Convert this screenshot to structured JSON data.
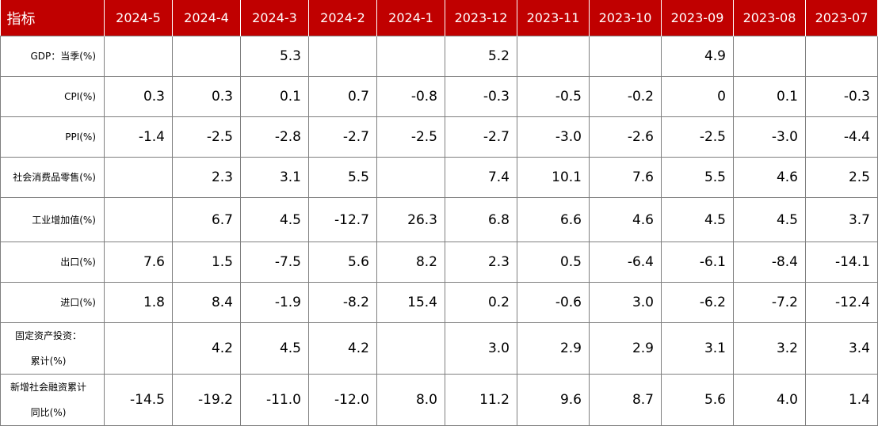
{
  "header": {
    "label": "指标",
    "periods": [
      "2024-5",
      "2024-4",
      "2024-3",
      "2024-2",
      "2024-1",
      "2023-12",
      "2023-11",
      "2023-10",
      "2023-09",
      "2023-08",
      "2023-07"
    ]
  },
  "rows": [
    {
      "label": "GDP：当季(%)",
      "values": [
        "",
        "",
        "5.3",
        "",
        "",
        "5.2",
        "",
        "",
        "4.9",
        "",
        ""
      ]
    },
    {
      "label": "CPI(%)",
      "values": [
        "0.3",
        "0.3",
        "0.1",
        "0.7",
        "-0.8",
        "-0.3",
        "-0.5",
        "-0.2",
        "0",
        "0.1",
        "-0.3"
      ]
    },
    {
      "label": "PPI(%)",
      "values": [
        "-1.4",
        "-2.5",
        "-2.8",
        "-2.7",
        "-2.5",
        "-2.7",
        "-3.0",
        "-2.6",
        "-2.5",
        "-3.0",
        "-4.4"
      ]
    },
    {
      "label": "社会消费品零售(%)",
      "values": [
        "",
        "2.3",
        "3.1",
        "5.5",
        "",
        "7.4",
        "10.1",
        "7.6",
        "5.5",
        "4.6",
        "2.5"
      ]
    },
    {
      "label": "工业增加值(%)",
      "values": [
        "",
        "6.7",
        "4.5",
        "-12.7",
        "26.3",
        "6.8",
        "6.6",
        "4.6",
        "4.5",
        "4.5",
        "3.7"
      ]
    },
    {
      "label": "出口(%)",
      "values": [
        "7.6",
        "1.5",
        "-7.5",
        "5.6",
        "8.2",
        "2.3",
        "0.5",
        "-6.4",
        "-6.1",
        "-8.4",
        "-14.1"
      ]
    },
    {
      "label": "进口(%)",
      "values": [
        "1.8",
        "8.4",
        "-1.9",
        "-8.2",
        "15.4",
        "0.2",
        "-0.6",
        "3.0",
        "-6.2",
        "-7.2",
        "-12.4"
      ]
    },
    {
      "label_lines": [
        "固定资产投资：",
        "累计(%)"
      ],
      "values": [
        "",
        "4.2",
        "4.5",
        "4.2",
        "",
        "3.0",
        "2.9",
        "2.9",
        "3.1",
        "3.2",
        "3.4"
      ]
    },
    {
      "label_lines": [
        "新增社会融资累计",
        "同比(%)"
      ],
      "values": [
        "-14.5",
        "-19.2",
        "-11.0",
        "-12.0",
        "8.0",
        "11.2",
        "9.6",
        "8.7",
        "5.6",
        "4.0",
        "1.4"
      ]
    }
  ]
}
